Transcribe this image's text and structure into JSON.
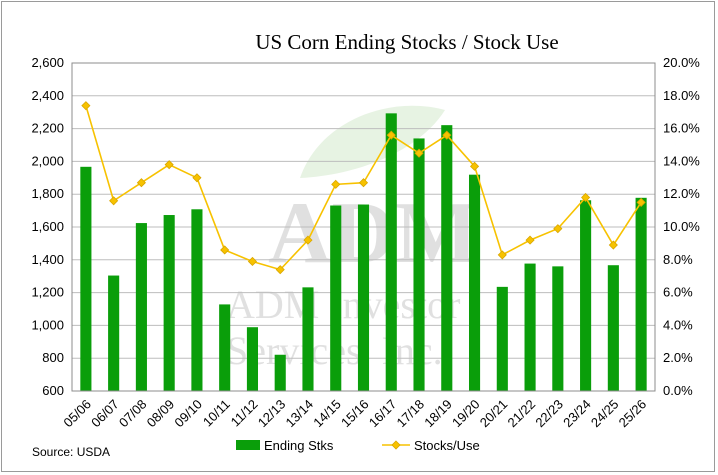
{
  "chart_data": {
    "type": "bar+line",
    "title": "US Corn Ending Stocks / Stock Use",
    "categories": [
      "05/06",
      "06/07",
      "07/08",
      "08/09",
      "09/10",
      "10/11",
      "11/12",
      "12/13",
      "13/14",
      "14/15",
      "15/16",
      "16/17",
      "17/18",
      "18/19",
      "19/20",
      "20/21",
      "21/22",
      "22/23",
      "23/24",
      "24/25",
      "25/26"
    ],
    "series": [
      {
        "name": "Ending Stks",
        "type": "bar",
        "axis": "left",
        "color": "#0a9e0a",
        "values": [
          1967,
          1304,
          1624,
          1673,
          1708,
          1128,
          989,
          821,
          1232,
          1731,
          1737,
          2293,
          2140,
          2221,
          1919,
          1235,
          1377,
          1360,
          1763,
          1367,
          1778
        ]
      },
      {
        "name": "Stocks/Use",
        "type": "line",
        "axis": "right",
        "color": "#f7c200",
        "values": [
          17.4,
          11.6,
          12.7,
          13.8,
          13.0,
          8.6,
          7.9,
          7.4,
          9.2,
          12.6,
          12.7,
          15.6,
          14.5,
          15.6,
          13.7,
          8.3,
          9.2,
          9.9,
          11.8,
          8.9,
          11.5
        ]
      }
    ],
    "left_axis": {
      "min": 600,
      "max": 2600,
      "step": 200
    },
    "right_axis": {
      "min": 0,
      "max": 20,
      "step": 2,
      "format": "percent"
    },
    "grid": true,
    "legend_position": "bottom"
  },
  "source": "Source: USDA",
  "watermark": {
    "logo": "ADM",
    "line1": "ADM Investor",
    "line2": "Services, Inc."
  }
}
